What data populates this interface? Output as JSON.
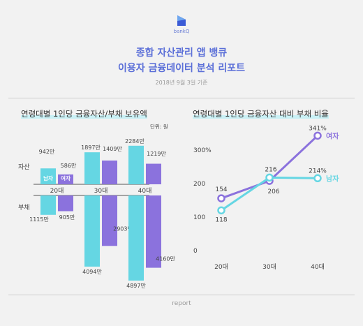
{
  "brand": {
    "name": "bankQ"
  },
  "header": {
    "title_line1": "종합 자산관리 앱 뱅큐",
    "title_line2": "이용자 금융데이터 분석 리포트",
    "date": "2018년 9월 3일 기준"
  },
  "footer": {
    "label": "report"
  },
  "colors": {
    "male": "#65d6e3",
    "female": "#8b72dd",
    "title": "#5b6fd8"
  },
  "chart_data": [
    {
      "type": "bar",
      "title": "연령대별 1인당 금융자산/부채 보유액",
      "unit": "단위: 원",
      "row_labels": {
        "assets": "자산",
        "debt": "부채"
      },
      "categories": [
        "20대",
        "30대",
        "40대"
      ],
      "series": [
        {
          "name": "남자",
          "assets": [
            942,
            1897,
            2284
          ],
          "debt": [
            1115,
            4094,
            4897
          ],
          "color": "#65d6e3"
        },
        {
          "name": "여자",
          "assets": [
            586,
            1409,
            1219
          ],
          "debt": [
            905,
            2903,
            4160
          ],
          "color": "#8b72dd"
        }
      ],
      "value_suffix": "만"
    },
    {
      "type": "line",
      "title": "연령대별 1인당 금융자산 대비 부채 비율",
      "categories": [
        "20대",
        "30대",
        "40대"
      ],
      "y_ticks": [
        "0",
        "100",
        "200",
        "300%"
      ],
      "ylim": [
        0,
        360
      ],
      "series": [
        {
          "name": "여자",
          "values": [
            154,
            206,
            341
          ],
          "labels": [
            "154",
            "206",
            "341%"
          ],
          "color": "#8b72dd"
        },
        {
          "name": "남자",
          "values": [
            118,
            216,
            214
          ],
          "labels": [
            "118",
            "216",
            "214%"
          ],
          "color": "#65d6e3"
        }
      ]
    }
  ]
}
